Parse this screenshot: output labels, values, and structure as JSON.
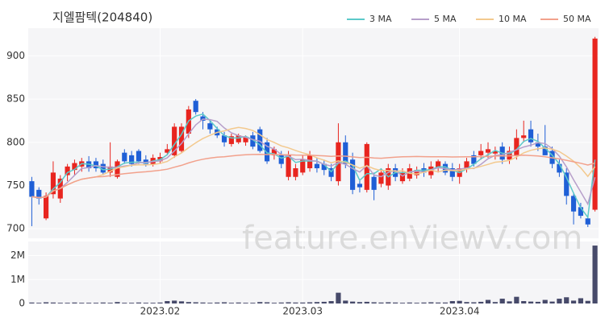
{
  "chart_data": {
    "type": "candlestick",
    "title": "지엘팜텍(204840)",
    "categories": [
      null,
      null,
      null,
      null,
      null,
      null,
      null,
      null,
      null,
      null,
      null,
      null,
      null,
      null,
      null,
      null,
      null,
      null,
      "2023.02",
      null,
      null,
      null,
      null,
      null,
      null,
      null,
      null,
      null,
      null,
      null,
      null,
      null,
      null,
      null,
      null,
      null,
      null,
      null,
      "2023.03",
      null,
      null,
      null,
      null,
      null,
      null,
      null,
      null,
      null,
      null,
      null,
      null,
      null,
      null,
      null,
      null,
      null,
      null,
      null,
      null,
      null,
      "2023.04",
      null,
      null,
      null,
      null,
      null,
      null,
      null,
      null,
      null,
      null,
      null,
      null,
      null,
      null,
      null,
      null,
      null,
      null,
      null
    ],
    "open": [
      755,
      745,
      712,
      740,
      735,
      762,
      768,
      772,
      778,
      778,
      775,
      765,
      760,
      788,
      785,
      790,
      780,
      775,
      778,
      788,
      785,
      790,
      810,
      848,
      830,
      822,
      815,
      808,
      798,
      800,
      800,
      808,
      815,
      800,
      785,
      785,
      760,
      760,
      765,
      770,
      775,
      775,
      770,
      755,
      800,
      780,
      752,
      745,
      760,
      752,
      750,
      770,
      755,
      758,
      762,
      770,
      762,
      770,
      775,
      770,
      760,
      770,
      785,
      785,
      788,
      787,
      795,
      780,
      785,
      805,
      815,
      800,
      795,
      790,
      775,
      765,
      738,
      725,
      712,
      722
    ],
    "high": [
      760,
      748,
      742,
      778,
      762,
      775,
      780,
      782,
      784,
      782,
      780,
      800,
      780,
      792,
      790,
      792,
      785,
      786,
      788,
      798,
      822,
      822,
      842,
      850,
      835,
      826,
      818,
      812,
      810,
      810,
      808,
      812,
      818,
      805,
      795,
      790,
      790,
      775,
      785,
      790,
      782,
      780,
      775,
      822,
      808,
      788,
      756,
      800,
      765,
      770,
      775,
      775,
      770,
      775,
      772,
      776,
      778,
      780,
      778,
      776,
      775,
      782,
      790,
      798,
      800,
      795,
      800,
      795,
      815,
      825,
      825,
      810,
      820,
      795,
      780,
      770,
      742,
      730,
      715,
      922
    ],
    "low": [
      703,
      728,
      710,
      735,
      730,
      755,
      762,
      766,
      766,
      766,
      762,
      760,
      758,
      775,
      772,
      775,
      772,
      772,
      775,
      785,
      782,
      788,
      805,
      832,
      815,
      810,
      805,
      795,
      795,
      798,
      796,
      792,
      788,
      775,
      780,
      770,
      756,
      756,
      762,
      766,
      765,
      762,
      755,
      750,
      770,
      740,
      742,
      742,
      733,
      748,
      745,
      755,
      752,
      755,
      758,
      760,
      758,
      765,
      762,
      755,
      752,
      765,
      772,
      780,
      782,
      780,
      775,
      775,
      780,
      800,
      795,
      790,
      785,
      770,
      760,
      728,
      705,
      712,
      702,
      720
    ],
    "close": [
      737,
      735,
      738,
      765,
      758,
      772,
      776,
      778,
      770,
      770,
      765,
      772,
      778,
      778,
      775,
      778,
      775,
      782,
      783,
      792,
      818,
      818,
      838,
      835,
      825,
      815,
      808,
      800,
      807,
      808,
      806,
      795,
      790,
      778,
      792,
      775,
      785,
      770,
      780,
      785,
      770,
      768,
      760,
      800,
      775,
      745,
      748,
      798,
      745,
      765,
      770,
      760,
      765,
      770,
      768,
      765,
      772,
      778,
      765,
      760,
      770,
      778,
      775,
      790,
      792,
      790,
      780,
      790,
      805,
      808,
      800,
      795,
      785,
      775,
      765,
      738,
      720,
      715,
      705,
      920
    ],
    "volume": [
      40000,
      30000,
      50000,
      40000,
      30000,
      30000,
      40000,
      30000,
      30000,
      30000,
      40000,
      30000,
      60000,
      30000,
      30000,
      40000,
      30000,
      30000,
      40000,
      100000,
      120000,
      90000,
      60000,
      50000,
      40000,
      30000,
      40000,
      50000,
      30000,
      40000,
      30000,
      30000,
      60000,
      50000,
      30000,
      40000,
      50000,
      40000,
      40000,
      50000,
      60000,
      70000,
      100000,
      450000,
      120000,
      80000,
      60000,
      70000,
      50000,
      40000,
      50000,
      40000,
      30000,
      40000,
      30000,
      40000,
      50000,
      40000,
      40000,
      100000,
      110000,
      60000,
      50000,
      70000,
      150000,
      60000,
      200000,
      90000,
      280000,
      100000,
      80000,
      70000,
      150000,
      80000,
      200000,
      260000,
      120000,
      220000,
      110000,
      2420000
    ],
    "up_color": "#e8251f",
    "down_color": "#1f5fd6",
    "volume_color": "#474a6a",
    "moving_averages": [
      {
        "name": "3 MA",
        "color": "#5cc9c9"
      },
      {
        "name": "5 MA",
        "color": "#b79fca"
      },
      {
        "name": "10 MA",
        "color": "#f3c98e"
      },
      {
        "name": "50 MA",
        "color": "#f2a18c"
      }
    ],
    "ylim": [
      689,
      932
    ],
    "yticks": [
      700,
      750,
      800,
      850,
      900
    ],
    "volume_ylim": [
      0,
      2590000
    ],
    "volume_yticks": [
      0,
      {
        "value": 1000000,
        "label": "1M"
      },
      {
        "value": 2000000,
        "label": "2M"
      }
    ],
    "grid": true,
    "watermark": "feature.enViewV.com"
  }
}
